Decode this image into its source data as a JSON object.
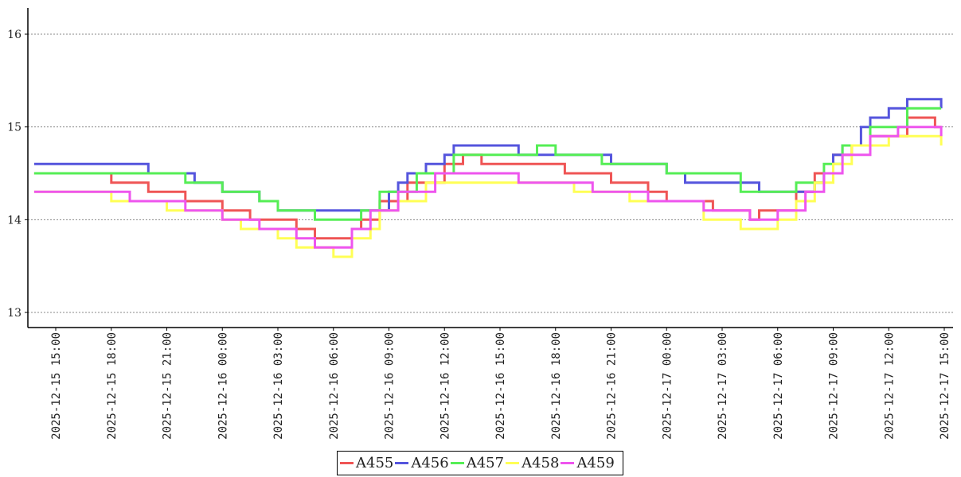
{
  "chart_data": {
    "type": "line",
    "step": true,
    "title": "",
    "xlabel": "",
    "ylabel": "",
    "ylim": [
      12.9,
      16.3
    ],
    "yticks": [
      13,
      14,
      15,
      16
    ],
    "xlim": [
      "2025-12-15 13:50",
      "2025-12-17 15:40"
    ],
    "xticks": [
      "2025-12-15 15:00",
      "2025-12-15 18:00",
      "2025-12-15 21:00",
      "2025-12-16 00:00",
      "2025-12-16 03:00",
      "2025-12-16 06:00",
      "2025-12-16 09:00",
      "2025-12-16 12:00",
      "2025-12-16 15:00",
      "2025-12-16 18:00",
      "2025-12-16 21:00",
      "2025-12-17 00:00",
      "2025-12-17 03:00",
      "2025-12-17 06:00",
      "2025-12-17 09:00",
      "2025-12-17 12:00",
      "2025-12-17 15:00"
    ],
    "grid": {
      "y": true,
      "x": false
    },
    "legend_position": "bottom-center",
    "series": [
      {
        "name": "A455",
        "color": "#ef5555",
        "points": [
          [
            "2025-12-15 13:50",
            14.5
          ],
          [
            "2025-12-15 18:00",
            14.4
          ],
          [
            "2025-12-15 20:00",
            14.3
          ],
          [
            "2025-12-15 22:00",
            14.2
          ],
          [
            "2025-12-16 00:00",
            14.1
          ],
          [
            "2025-12-16 01:30",
            14.0
          ],
          [
            "2025-12-16 04:00",
            13.9
          ],
          [
            "2025-12-16 05:00",
            13.8
          ],
          [
            "2025-12-16 07:00",
            13.9
          ],
          [
            "2025-12-16 07:30",
            14.0
          ],
          [
            "2025-12-16 08:30",
            14.2
          ],
          [
            "2025-12-16 10:00",
            14.4
          ],
          [
            "2025-12-16 12:00",
            14.6
          ],
          [
            "2025-12-16 13:00",
            14.7
          ],
          [
            "2025-12-16 14:00",
            14.6
          ],
          [
            "2025-12-16 18:30",
            14.5
          ],
          [
            "2025-12-16 21:00",
            14.4
          ],
          [
            "2025-12-16 23:00",
            14.3
          ],
          [
            "2025-12-17 00:00",
            14.2
          ],
          [
            "2025-12-17 02:30",
            14.1
          ],
          [
            "2025-12-17 04:30",
            14.0
          ],
          [
            "2025-12-17 05:00",
            14.1
          ],
          [
            "2025-12-17 07:00",
            14.3
          ],
          [
            "2025-12-17 08:00",
            14.5
          ],
          [
            "2025-12-17 09:00",
            14.7
          ],
          [
            "2025-12-17 10:00",
            14.8
          ],
          [
            "2025-12-17 11:00",
            14.9
          ],
          [
            "2025-12-17 13:00",
            15.1
          ],
          [
            "2025-12-17 14:30",
            15.0
          ],
          [
            "2025-12-17 14:50",
            15.0
          ]
        ]
      },
      {
        "name": "A456",
        "color": "#5555dd",
        "points": [
          [
            "2025-12-15 13:50",
            14.6
          ],
          [
            "2025-12-15 20:00",
            14.5
          ],
          [
            "2025-12-15 22:30",
            14.4
          ],
          [
            "2025-12-16 00:00",
            14.3
          ],
          [
            "2025-12-16 02:00",
            14.2
          ],
          [
            "2025-12-16 03:00",
            14.1
          ],
          [
            "2025-12-16 09:00",
            14.3
          ],
          [
            "2025-12-16 09:30",
            14.4
          ],
          [
            "2025-12-16 10:00",
            14.5
          ],
          [
            "2025-12-16 11:00",
            14.6
          ],
          [
            "2025-12-16 12:00",
            14.7
          ],
          [
            "2025-12-16 12:30",
            14.8
          ],
          [
            "2025-12-16 16:00",
            14.7
          ],
          [
            "2025-12-16 21:00",
            14.6
          ],
          [
            "2025-12-17 00:00",
            14.5
          ],
          [
            "2025-12-17 01:00",
            14.4
          ],
          [
            "2025-12-17 05:00",
            14.3
          ],
          [
            "2025-12-17 08:00",
            14.4
          ],
          [
            "2025-12-17 08:30",
            14.5
          ],
          [
            "2025-12-17 09:00",
            14.7
          ],
          [
            "2025-12-17 09:30",
            14.8
          ],
          [
            "2025-12-17 10:30",
            15.0
          ],
          [
            "2025-12-17 11:00",
            15.1
          ],
          [
            "2025-12-17 12:00",
            15.2
          ],
          [
            "2025-12-17 13:00",
            15.3
          ],
          [
            "2025-12-17 14:50",
            15.2
          ]
        ]
      },
      {
        "name": "A457",
        "color": "#55ee55",
        "points": [
          [
            "2025-12-15 13:50",
            14.5
          ],
          [
            "2025-12-15 22:00",
            14.4
          ],
          [
            "2025-12-16 00:00",
            14.3
          ],
          [
            "2025-12-16 02:00",
            14.2
          ],
          [
            "2025-12-16 03:00",
            14.1
          ],
          [
            "2025-12-16 05:00",
            14.0
          ],
          [
            "2025-12-16 07:30",
            14.1
          ],
          [
            "2025-12-16 08:30",
            14.3
          ],
          [
            "2025-12-16 10:30",
            14.5
          ],
          [
            "2025-12-16 12:30",
            14.7
          ],
          [
            "2025-12-16 15:00",
            14.7
          ],
          [
            "2025-12-16 17:00",
            14.8
          ],
          [
            "2025-12-16 18:00",
            14.7
          ],
          [
            "2025-12-16 20:30",
            14.6
          ],
          [
            "2025-12-17 00:00",
            14.5
          ],
          [
            "2025-12-17 04:00",
            14.3
          ],
          [
            "2025-12-17 07:00",
            14.4
          ],
          [
            "2025-12-17 08:30",
            14.6
          ],
          [
            "2025-12-17 09:30",
            14.8
          ],
          [
            "2025-12-17 11:00",
            15.0
          ],
          [
            "2025-12-17 13:00",
            15.2
          ],
          [
            "2025-12-17 14:50",
            15.2
          ]
        ]
      },
      {
        "name": "A458",
        "color": "#ffff55",
        "points": [
          [
            "2025-12-15 13:50",
            14.3
          ],
          [
            "2025-12-15 18:00",
            14.2
          ],
          [
            "2025-12-15 21:00",
            14.1
          ],
          [
            "2025-12-16 00:00",
            14.0
          ],
          [
            "2025-12-16 01:00",
            13.9
          ],
          [
            "2025-12-16 03:00",
            13.8
          ],
          [
            "2025-12-16 04:00",
            13.7
          ],
          [
            "2025-12-16 06:00",
            13.6
          ],
          [
            "2025-12-16 07:00",
            13.8
          ],
          [
            "2025-12-16 08:00",
            13.9
          ],
          [
            "2025-12-16 08:30",
            14.1
          ],
          [
            "2025-12-16 09:30",
            14.2
          ],
          [
            "2025-12-16 11:00",
            14.4
          ],
          [
            "2025-12-16 19:00",
            14.3
          ],
          [
            "2025-12-16 22:00",
            14.2
          ],
          [
            "2025-12-17 02:00",
            14.0
          ],
          [
            "2025-12-17 04:00",
            13.9
          ],
          [
            "2025-12-17 06:00",
            14.0
          ],
          [
            "2025-12-17 07:00",
            14.2
          ],
          [
            "2025-12-17 08:00",
            14.4
          ],
          [
            "2025-12-17 09:00",
            14.6
          ],
          [
            "2025-12-17 10:00",
            14.8
          ],
          [
            "2025-12-17 12:00",
            14.9
          ],
          [
            "2025-12-17 14:50",
            14.8
          ]
        ]
      },
      {
        "name": "A459",
        "color": "#ee55ee",
        "points": [
          [
            "2025-12-15 13:50",
            14.3
          ],
          [
            "2025-12-15 19:00",
            14.2
          ],
          [
            "2025-12-15 22:00",
            14.1
          ],
          [
            "2025-12-16 00:00",
            14.0
          ],
          [
            "2025-12-16 02:00",
            13.9
          ],
          [
            "2025-12-16 04:00",
            13.8
          ],
          [
            "2025-12-16 05:00",
            13.7
          ],
          [
            "2025-12-16 07:00",
            13.9
          ],
          [
            "2025-12-16 08:00",
            14.1
          ],
          [
            "2025-12-16 09:30",
            14.3
          ],
          [
            "2025-12-16 11:30",
            14.5
          ],
          [
            "2025-12-16 16:00",
            14.4
          ],
          [
            "2025-12-16 20:00",
            14.3
          ],
          [
            "2025-12-16 23:00",
            14.2
          ],
          [
            "2025-12-17 02:00",
            14.1
          ],
          [
            "2025-12-17 04:30",
            14.0
          ],
          [
            "2025-12-17 06:00",
            14.1
          ],
          [
            "2025-12-17 07:30",
            14.3
          ],
          [
            "2025-12-17 08:30",
            14.5
          ],
          [
            "2025-12-17 09:30",
            14.7
          ],
          [
            "2025-12-17 11:00",
            14.9
          ],
          [
            "2025-12-17 12:30",
            15.0
          ],
          [
            "2025-12-17 14:50",
            14.9
          ]
        ]
      }
    ]
  }
}
